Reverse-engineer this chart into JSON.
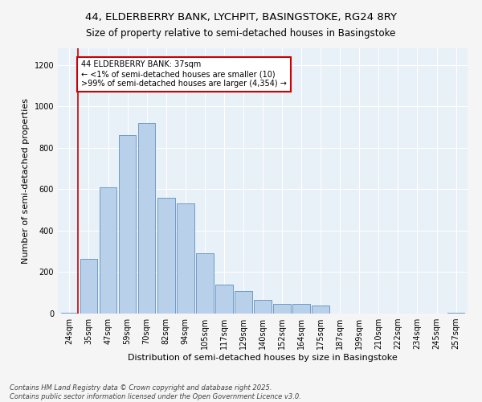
{
  "title1": "44, ELDERBERRY BANK, LYCHPIT, BASINGSTOKE, RG24 8RY",
  "title2": "Size of property relative to semi-detached houses in Basingstoke",
  "xlabel": "Distribution of semi-detached houses by size in Basingstoke",
  "ylabel": "Number of semi-detached properties",
  "categories": [
    "24sqm",
    "35sqm",
    "47sqm",
    "59sqm",
    "70sqm",
    "82sqm",
    "94sqm",
    "105sqm",
    "117sqm",
    "129sqm",
    "140sqm",
    "152sqm",
    "164sqm",
    "175sqm",
    "187sqm",
    "199sqm",
    "210sqm",
    "222sqm",
    "234sqm",
    "245sqm",
    "257sqm"
  ],
  "values": [
    5,
    265,
    610,
    860,
    920,
    560,
    530,
    290,
    140,
    110,
    65,
    45,
    45,
    40,
    0,
    0,
    0,
    0,
    0,
    0,
    5
  ],
  "bar_color": "#b8d0ea",
  "bar_edge_color": "#6090c0",
  "annotation_text": "44 ELDERBERRY BANK: 37sqm\n← <1% of semi-detached houses are smaller (10)\n>99% of semi-detached houses are larger (4,354) →",
  "annotation_box_color": "#ffffff",
  "annotation_border_color": "#cc0000",
  "vline_color": "#cc0000",
  "vline_x": 0.45,
  "ylim": [
    0,
    1280
  ],
  "yticks": [
    0,
    200,
    400,
    600,
    800,
    1000,
    1200
  ],
  "footer": "Contains HM Land Registry data © Crown copyright and database right 2025.\nContains public sector information licensed under the Open Government Licence v3.0.",
  "bg_color": "#e8f0f8",
  "fig_bg_color": "#f5f5f5",
  "title_fontsize": 9.5,
  "subtitle_fontsize": 8.5,
  "axis_label_fontsize": 8,
  "tick_fontsize": 7,
  "annotation_fontsize": 7,
  "footer_fontsize": 6
}
